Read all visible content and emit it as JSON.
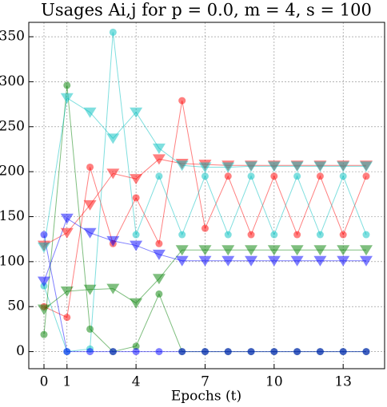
{
  "chart_data": {
    "type": "line",
    "title": "Usages Ai,j for p = 0.0, m = 4, s = 100",
    "x_label": "Epochs (t)",
    "x": [
      0,
      1,
      2,
      3,
      4,
      5,
      6,
      7,
      8,
      9,
      10,
      11,
      12,
      13,
      14
    ],
    "xlim": [
      -0.66,
      14.8
    ],
    "xticks": [
      0,
      1,
      4,
      7,
      10,
      13
    ],
    "ylim": [
      -19,
      366
    ],
    "yticks": [
      0,
      50,
      100,
      150,
      200,
      250,
      300,
      350
    ],
    "grid": true,
    "series": [
      {
        "color": "#ff0000",
        "marker": "circle",
        "values": [
          50,
          38,
          205,
          120,
          171,
          120,
          279,
          137,
          195,
          130,
          195,
          130,
          195,
          130,
          195
        ]
      },
      {
        "color": "#00c0c0",
        "marker": "circle",
        "values": [
          73,
          0,
          3,
          355,
          130,
          195,
          130,
          195,
          130,
          195,
          130,
          195,
          130,
          195,
          130
        ]
      },
      {
        "color": "#008000",
        "marker": "circle",
        "values": [
          19,
          296,
          25,
          0,
          6,
          64,
          0,
          0,
          0,
          0,
          0,
          0,
          0,
          0,
          0
        ]
      },
      {
        "color": "#0000ff",
        "marker": "circle",
        "values": [
          130,
          0,
          0,
          0,
          0,
          0,
          0,
          0,
          0,
          0,
          0,
          0,
          0,
          0,
          0
        ]
      },
      {
        "color": "#ff0000",
        "marker": "triangle",
        "values": [
          118,
          132,
          163,
          198,
          192,
          214,
          209,
          208,
          207,
          207,
          207,
          207,
          207,
          207,
          207
        ]
      },
      {
        "color": "#00c0c0",
        "marker": "triangle",
        "values": [
          116,
          282,
          266,
          237,
          266,
          226,
          207,
          205,
          205,
          206,
          206,
          206,
          206,
          206,
          206
        ]
      },
      {
        "color": "#008000",
        "marker": "triangle",
        "values": [
          47,
          67,
          69,
          70,
          54,
          81,
          113,
          113,
          113,
          113,
          113,
          113,
          113,
          113,
          113
        ]
      },
      {
        "color": "#0000ff",
        "marker": "triangle",
        "values": [
          78,
          148,
          132,
          123,
          118,
          108,
          101,
          101,
          101,
          101,
          101,
          101,
          101,
          101,
          101
        ]
      }
    ]
  }
}
